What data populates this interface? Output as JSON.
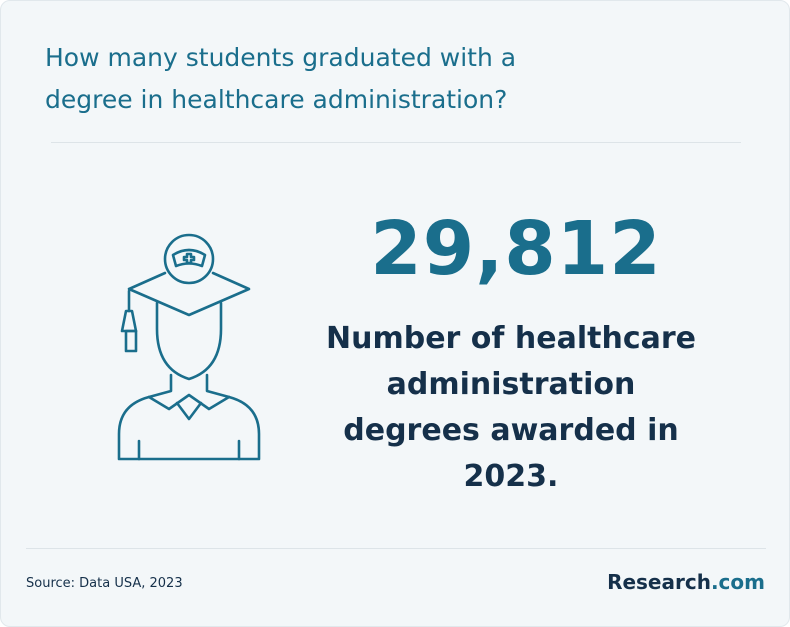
{
  "title_lines": [
    "How many students graduated with a",
    "degree in healthcare administration?"
  ],
  "stat": {
    "value": "29,812",
    "description_lines": [
      "Number of healthcare",
      "administration",
      "degrees awarded in",
      "2023."
    ]
  },
  "footer": {
    "source": "Source: Data USA, 2023",
    "brand": {
      "name": "Research",
      "suffix": ".com"
    }
  }
}
